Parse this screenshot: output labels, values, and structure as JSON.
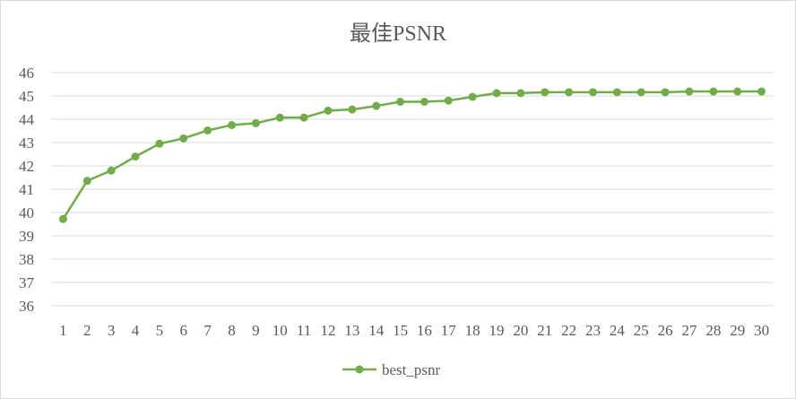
{
  "chart_data": {
    "type": "line",
    "title": "最佳PSNR",
    "xlabel": "",
    "ylabel": "",
    "categories": [
      "1",
      "2",
      "3",
      "4",
      "5",
      "6",
      "7",
      "8",
      "9",
      "10",
      "11",
      "12",
      "13",
      "14",
      "15",
      "16",
      "17",
      "18",
      "19",
      "20",
      "21",
      "22",
      "23",
      "24",
      "25",
      "26",
      "27",
      "28",
      "29",
      "30"
    ],
    "ylim": [
      36,
      46
    ],
    "yticks": [
      36,
      37,
      38,
      39,
      40,
      41,
      42,
      43,
      44,
      45,
      46
    ],
    "grid": true,
    "legend": "bottom",
    "series": [
      {
        "name": "best_psnr",
        "color": "#70ad47",
        "values": [
          39.72,
          41.36,
          41.8,
          42.4,
          42.95,
          43.18,
          43.52,
          43.75,
          43.83,
          44.07,
          44.07,
          44.37,
          44.42,
          44.57,
          44.75,
          44.75,
          44.8,
          44.96,
          45.12,
          45.12,
          45.16,
          45.16,
          45.16,
          45.16,
          45.16,
          45.16,
          45.19,
          45.19,
          45.19,
          45.19
        ]
      }
    ]
  }
}
